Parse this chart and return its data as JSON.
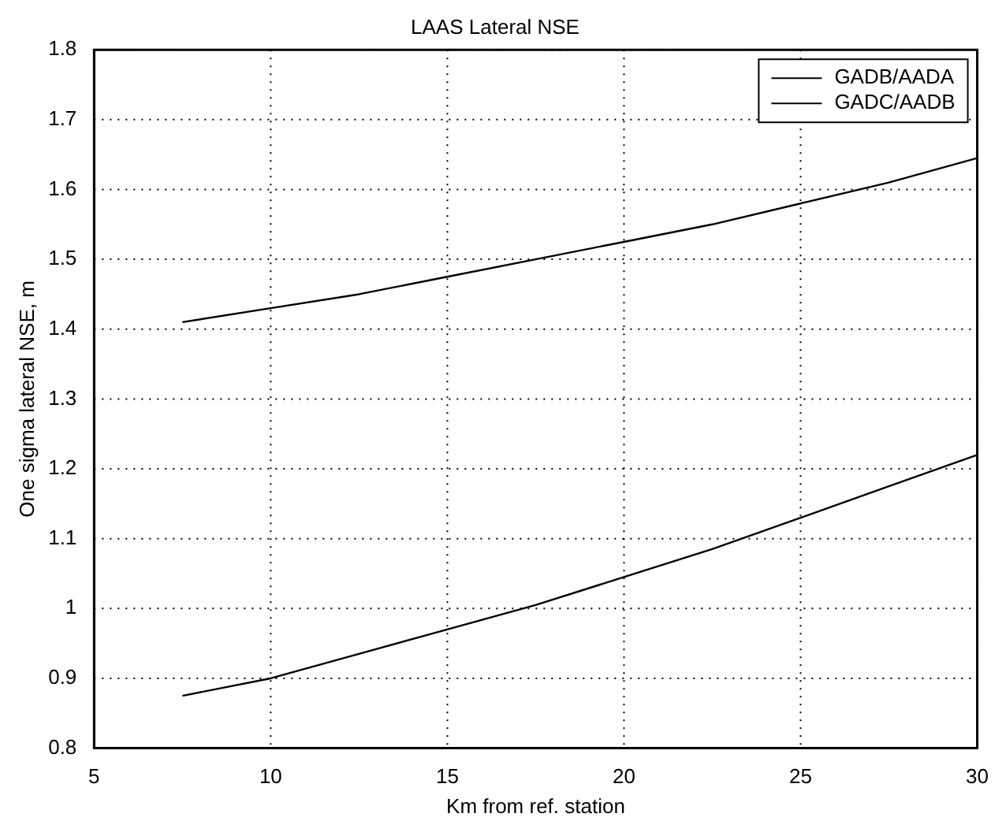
{
  "chart_data": {
    "type": "line",
    "title": "LAAS Lateral NSE",
    "xlabel": "Km from ref. station",
    "ylabel": "One sigma lateral NSE, m",
    "x": [
      7.5,
      10,
      12.5,
      15,
      17.5,
      20,
      22.5,
      25,
      27.5,
      30
    ],
    "series": [
      {
        "name": "GADB/AADA",
        "color": "#000000",
        "values": [
          1.41,
          1.43,
          1.45,
          1.475,
          1.5,
          1.525,
          1.55,
          1.58,
          1.61,
          1.645
        ]
      },
      {
        "name": "GADC/AADB",
        "color": "#000000",
        "values": [
          0.875,
          0.9,
          0.935,
          0.97,
          1.005,
          1.045,
          1.085,
          1.13,
          1.175,
          1.22
        ]
      }
    ],
    "xlim": [
      5,
      30
    ],
    "xticks": [
      5,
      10,
      15,
      20,
      25,
      30
    ],
    "ylim": [
      0.8,
      1.8
    ],
    "yticks": [
      0.8,
      0.9,
      1,
      1.1,
      1.2,
      1.3,
      1.4,
      1.5,
      1.6,
      1.7,
      1.8
    ],
    "grid": true,
    "legend": "top right",
    "marker": "none",
    "line_style": "solid"
  }
}
